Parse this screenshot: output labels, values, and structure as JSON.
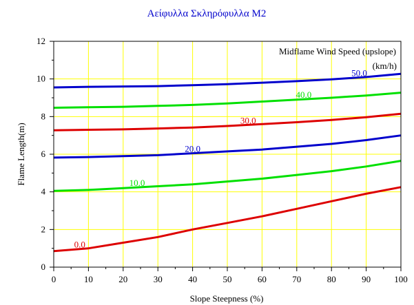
{
  "chart_data": {
    "type": "line",
    "title": "Αείφυλλα Σκληρόφυλλα M2",
    "xlabel": "Slope Steepness (%)",
    "ylabel": "Flame Length(m)",
    "xlim": [
      0,
      100
    ],
    "ylim": [
      0,
      12
    ],
    "x_ticks": [
      "0",
      "10",
      "20",
      "30",
      "40",
      "50",
      "60",
      "70",
      "80",
      "90",
      "100"
    ],
    "y_ticks": [
      "0",
      "2",
      "4",
      "6",
      "8",
      "10",
      "12"
    ],
    "grid": true,
    "legend_title_line1": "Midflame Wind Speed (upslope)",
    "legend_title_line2": "(km/h)",
    "colors": {
      "blue": "#0000cc",
      "green": "#00e000",
      "red": "#dd0000",
      "grid": "#ffff00",
      "title": "#0000cc"
    },
    "x": [
      0,
      10,
      20,
      30,
      40,
      50,
      60,
      70,
      80,
      90,
      100
    ],
    "series": [
      {
        "name": "0.0",
        "color": "red",
        "label_x": 7.5,
        "values": [
          0.85,
          1.0,
          1.3,
          1.6,
          2.0,
          2.35,
          2.7,
          3.1,
          3.5,
          3.9,
          4.25
        ]
      },
      {
        "name": "10.0",
        "color": "green",
        "label_x": 24,
        "values": [
          4.05,
          4.1,
          4.2,
          4.3,
          4.4,
          4.55,
          4.7,
          4.9,
          5.1,
          5.35,
          5.65
        ]
      },
      {
        "name": "20.0",
        "color": "blue",
        "label_x": 40,
        "values": [
          5.82,
          5.85,
          5.9,
          5.95,
          6.05,
          6.15,
          6.25,
          6.4,
          6.55,
          6.75,
          7.0
        ]
      },
      {
        "name": "30.0",
        "color": "red",
        "label_x": 56,
        "values": [
          7.27,
          7.3,
          7.32,
          7.37,
          7.42,
          7.5,
          7.6,
          7.7,
          7.82,
          7.97,
          8.15
        ]
      },
      {
        "name": "40.0",
        "color": "green",
        "label_x": 72,
        "values": [
          8.47,
          8.5,
          8.52,
          8.57,
          8.62,
          8.7,
          8.8,
          8.9,
          9.0,
          9.12,
          9.27
        ]
      },
      {
        "name": "50.0",
        "color": "blue",
        "label_x": 88,
        "values": [
          9.55,
          9.58,
          9.6,
          9.62,
          9.67,
          9.72,
          9.8,
          9.88,
          9.98,
          10.1,
          10.27
        ]
      }
    ]
  }
}
